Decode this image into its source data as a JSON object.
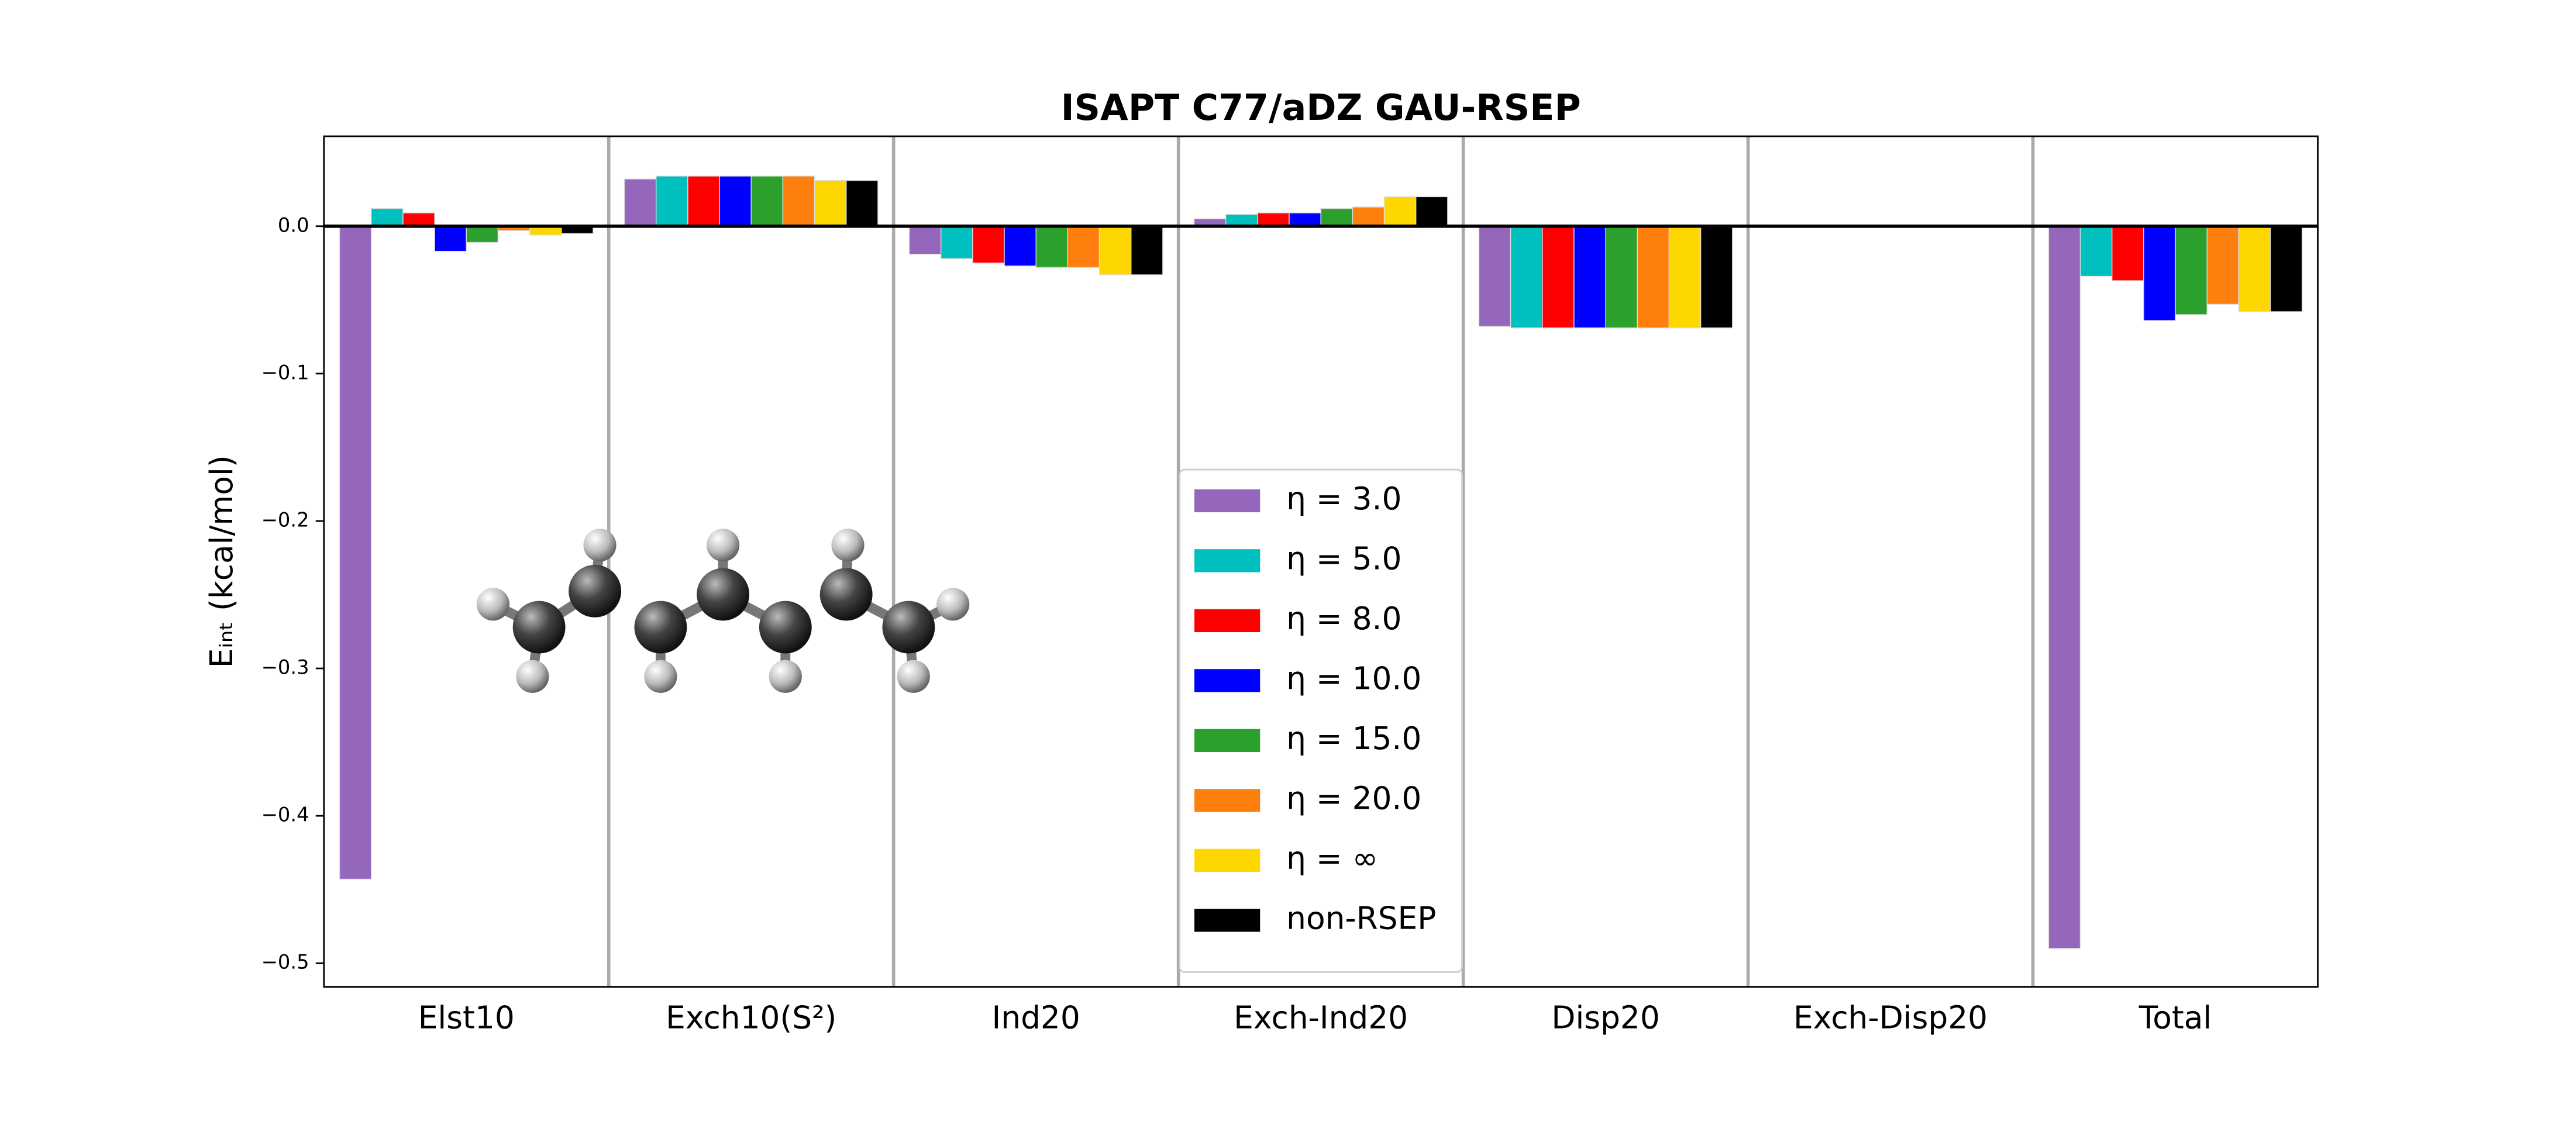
{
  "chart_data": {
    "type": "bar",
    "title": "ISAPT C77/aDZ GAU-RSEP",
    "ylabel": "Eᵢₙₜ (kcal/mol)",
    "categories": [
      "Elst10",
      "Exch10(S²)",
      "Ind20",
      "Exch-Ind20",
      "Disp20",
      "Exch-Disp20",
      "Total"
    ],
    "series": [
      {
        "name": "η = 3.0",
        "color": "#9467bd",
        "values": [
          -0.443,
          0.032,
          -0.019,
          0.005,
          -0.068,
          -0.001,
          -0.49
        ]
      },
      {
        "name": "η = 5.0",
        "color": "#00bfbf",
        "values": [
          0.012,
          0.034,
          -0.022,
          0.008,
          -0.069,
          -0.001,
          -0.034
        ]
      },
      {
        "name": "η = 8.0",
        "color": "#ff0000",
        "values": [
          0.009,
          0.034,
          -0.025,
          0.009,
          -0.069,
          -0.001,
          -0.037
        ]
      },
      {
        "name": "η = 10.0",
        "color": "#0000ff",
        "values": [
          -0.017,
          0.034,
          -0.027,
          0.009,
          -0.069,
          -0.001,
          -0.064
        ]
      },
      {
        "name": "η = 15.0",
        "color": "#2ca02c",
        "values": [
          -0.011,
          0.034,
          -0.028,
          0.012,
          -0.069,
          -0.001,
          -0.06
        ]
      },
      {
        "name": "η = 20.0",
        "color": "#ff7f0e",
        "values": [
          -0.003,
          0.034,
          -0.028,
          0.013,
          -0.069,
          -0.001,
          -0.053
        ]
      },
      {
        "name": "η = ∞",
        "color": "#ffd700",
        "values": [
          -0.006,
          0.031,
          -0.033,
          0.02,
          -0.069,
          -0.001,
          -0.058
        ]
      },
      {
        "name": "non-RSEP",
        "color": "#000000",
        "values": [
          -0.005,
          0.031,
          -0.033,
          0.02,
          -0.069,
          -0.001,
          -0.058
        ]
      }
    ],
    "ylim": [
      -0.516,
      0.061
    ],
    "yticks": [
      {
        "value": 0,
        "label": "0.0"
      },
      {
        "value": -0.1,
        "label": "−0.1"
      },
      {
        "value": -0.2,
        "label": "−0.2"
      },
      {
        "value": -0.3,
        "label": "−0.3"
      },
      {
        "value": -0.4,
        "label": "−0.4"
      },
      {
        "value": -0.5,
        "label": "−0.5"
      }
    ],
    "legend": "lower center",
    "separators": true
  }
}
